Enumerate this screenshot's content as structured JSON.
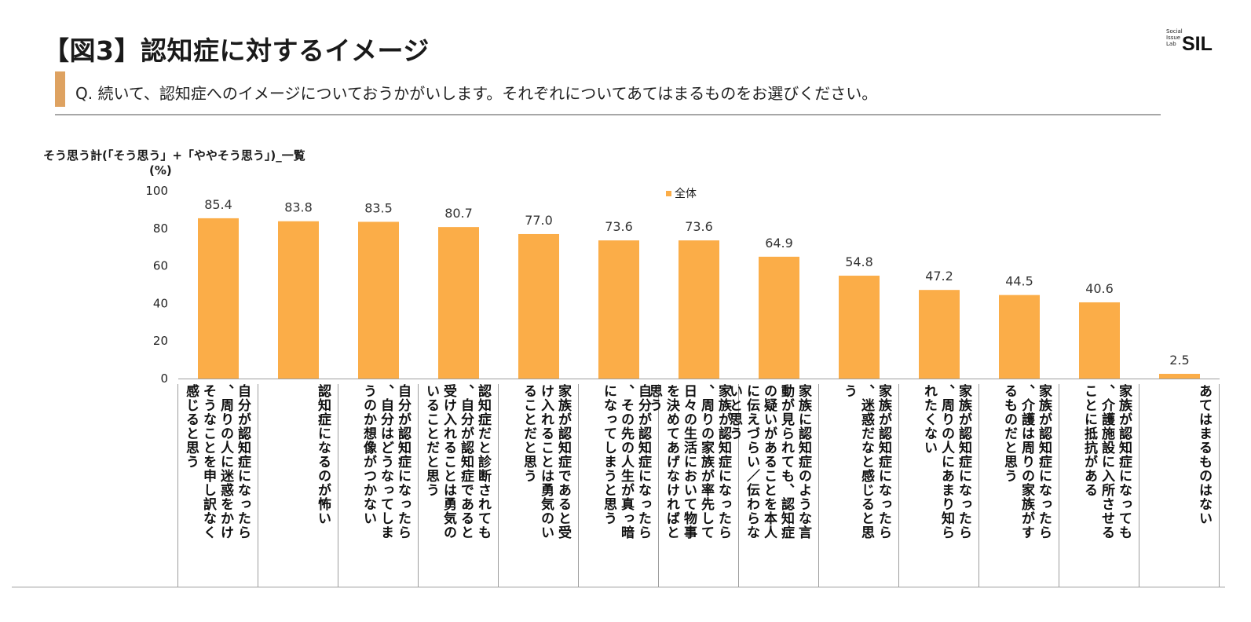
{
  "header": {
    "title": "【図3】認知症に対するイメージ",
    "question": "Q. 続いて、認知症へのイメージについておうかがいします。それぞれについてあてはまるものをお選びください。",
    "logo_small": [
      "Social",
      "Issue",
      "Lab"
    ],
    "logo_main": "SIL"
  },
  "colors": {
    "bar": "#fbad48",
    "accent": "#dea261",
    "axis": "#9d9d9d"
  },
  "chart_data": {
    "type": "bar",
    "title": "そう思う計(「そう思う」+「ややそう思う」)_一覧",
    "ylabel": "(%)",
    "ylim": [
      0,
      100
    ],
    "yticks": [
      "0",
      "20",
      "40",
      "60",
      "80",
      "100"
    ],
    "legend": "全体",
    "series": [
      {
        "name": "全体",
        "values": [
          85.4,
          83.8,
          83.5,
          80.7,
          77.0,
          73.6,
          73.6,
          64.9,
          54.8,
          47.2,
          44.5,
          40.6,
          2.5
        ]
      }
    ],
    "value_labels": [
      "85.4",
      "83.8",
      "83.5",
      "80.7",
      "77.0",
      "73.6",
      "73.6",
      "64.9",
      "54.8",
      "47.2",
      "44.5",
      "40.6",
      "2.5"
    ],
    "categories": [
      "自分が認知症になったら、周りの人に迷惑をかけそうなことを申し訳なく感じると思う",
      "認知症になるのが怖い",
      "自分が認知症になったら、自分はどうなってしまうのか想像がつかない",
      "認知症だと診断されても、自分が認知症であると受け入れることは勇気のいることだと思う",
      "家族が認知症であると受け入れることは勇気のいることだと思う",
      "自分が認知症になったら、その先の人生が真っ暗になってしまうと思う",
      "家族が認知症になったら、周りの家族が率先して日々の生活において物事を決めてあげなければと思う",
      "家族に認知症のような言動が見られても、認知症の疑いがあることを本人に伝えづらい／伝わらないと思う",
      "家族が認知症になったら、迷惑だなと感じると思う",
      "家族が認知症になったら、周りの人にあまり知られたくない",
      "家族が認知症になったら、介護は周りの家族がするものだと思う",
      "家族が認知症になっても、介護施設に入所させることに抵抗がある",
      "あてはまるものはない"
    ]
  }
}
